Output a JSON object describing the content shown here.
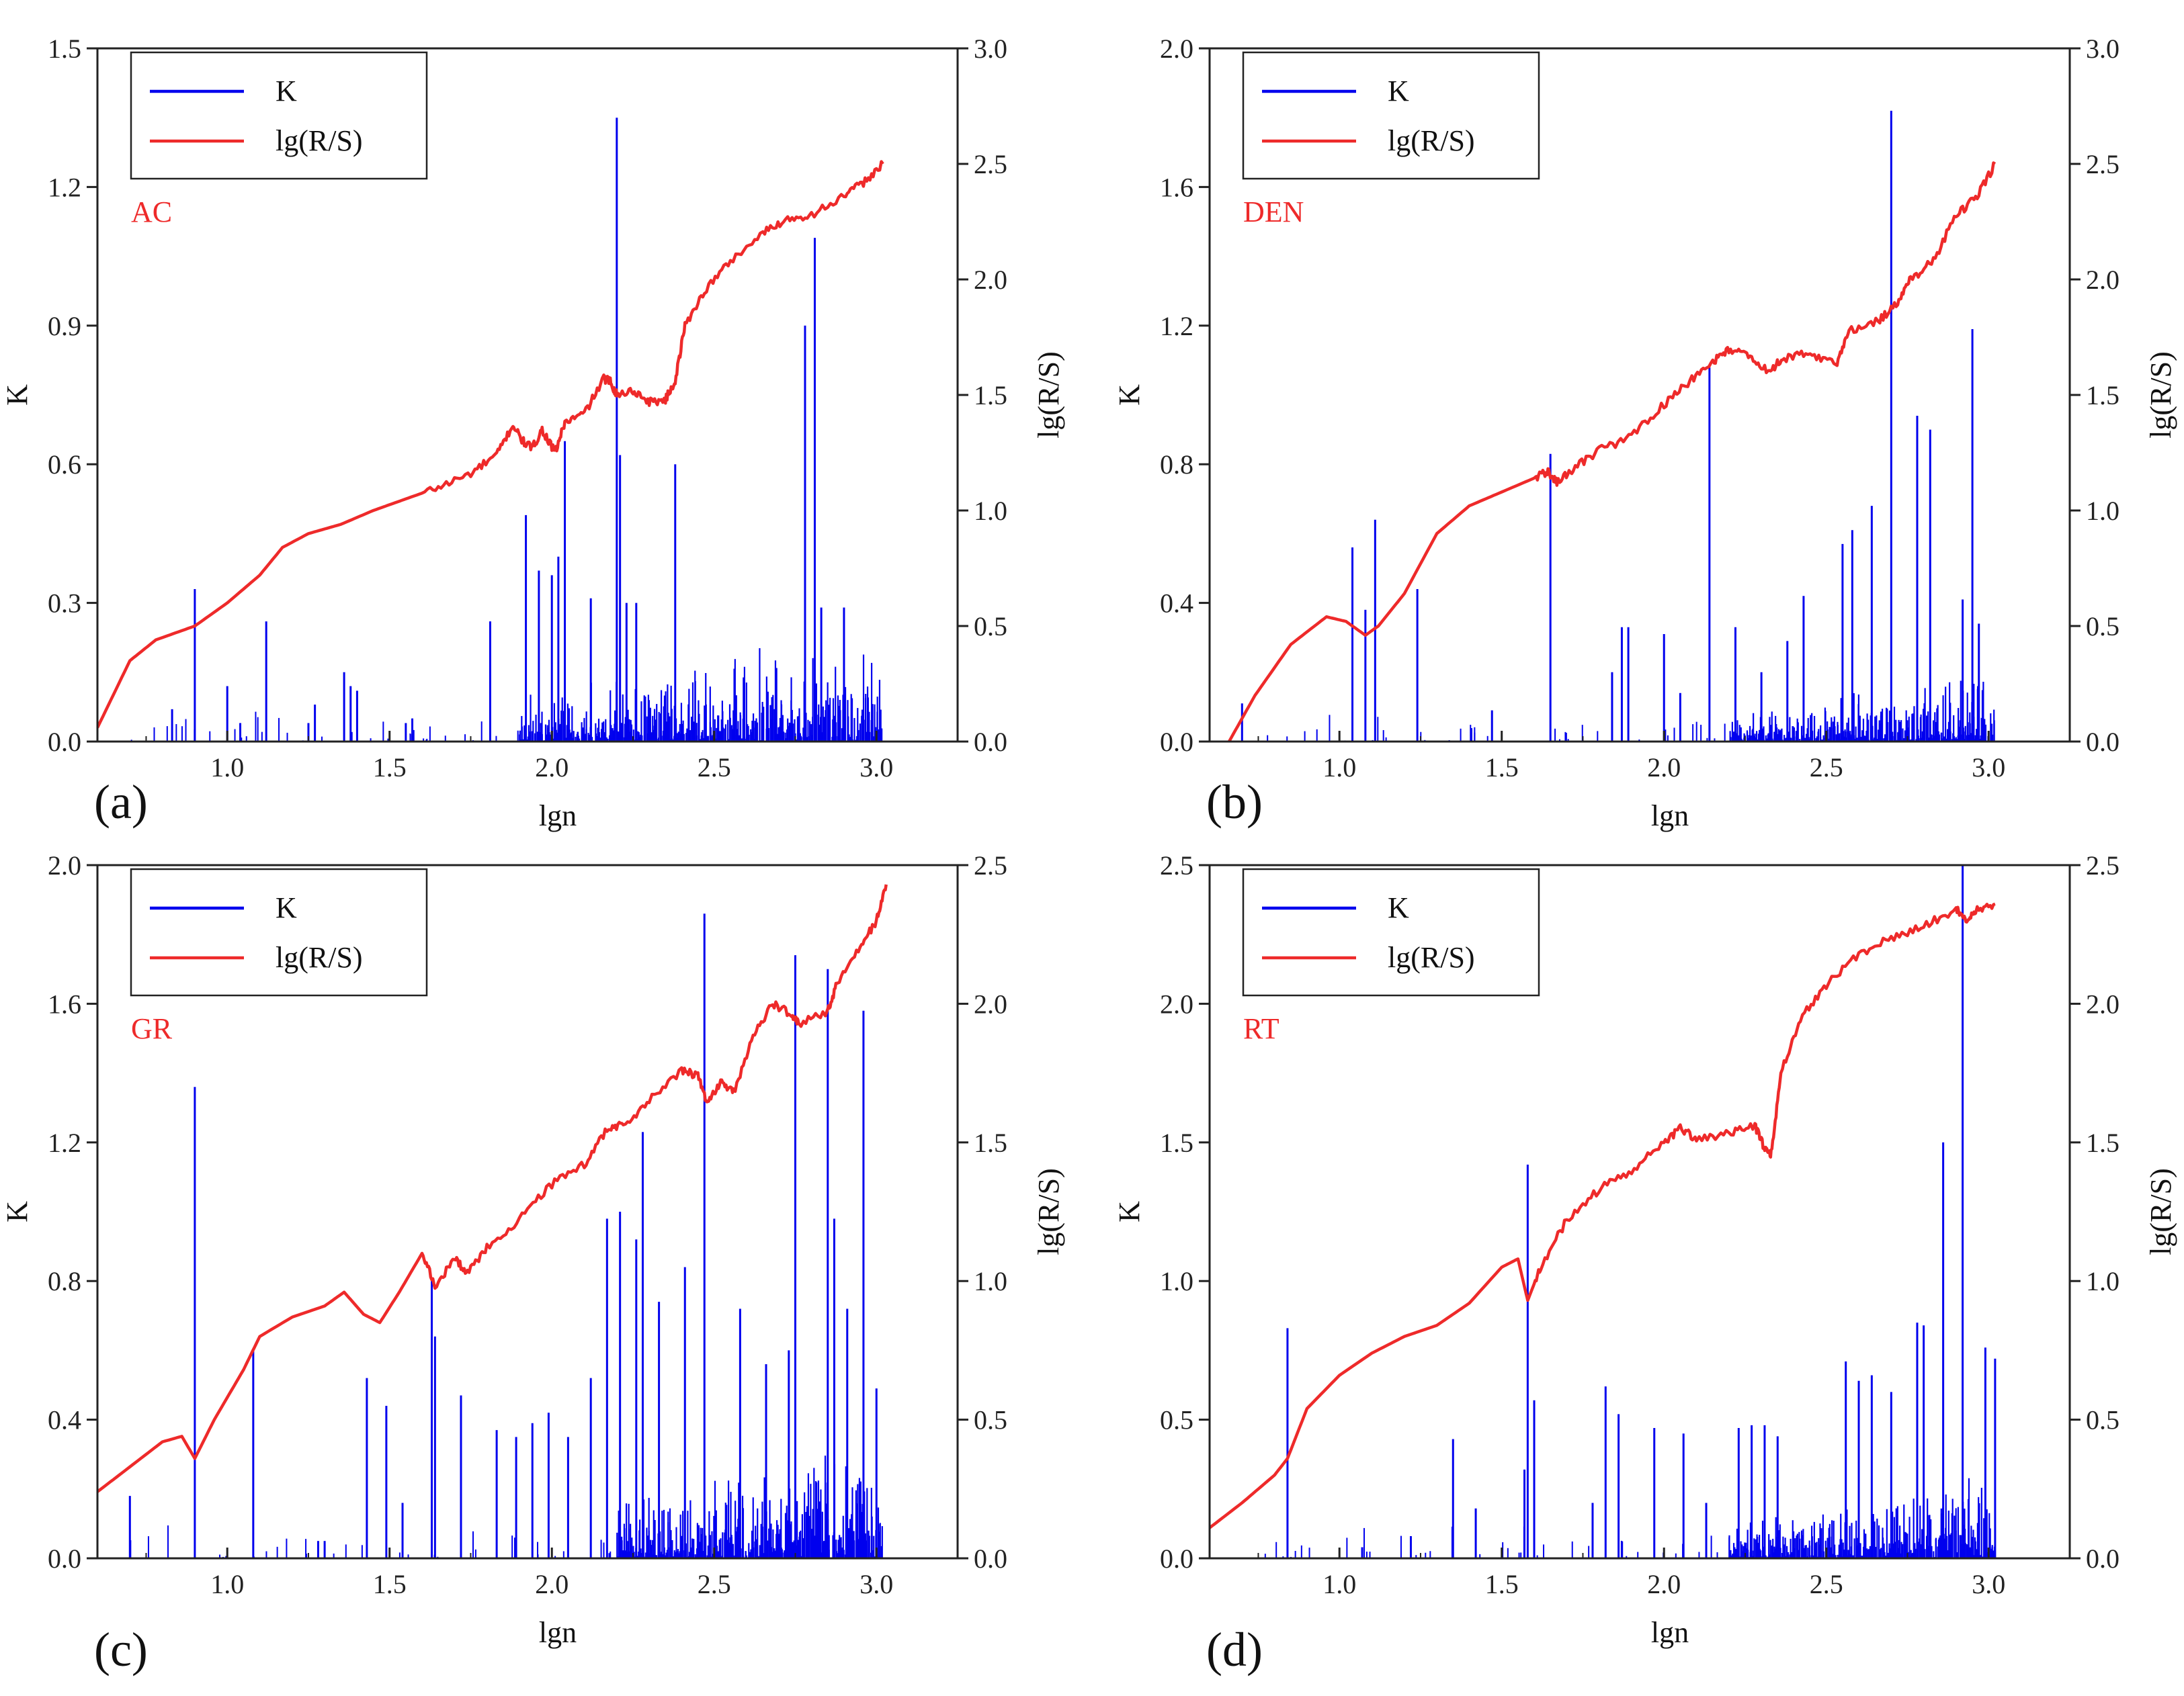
{
  "colors": {
    "k_series": "#0000ee",
    "rs_series": "#ee2a2a",
    "axis": "#222222"
  },
  "chart_data": [
    {
      "type": "bar+line",
      "panel_label": "(a)",
      "series_tag": "AC",
      "xlabel": "lgn",
      "ylabel_left": "K",
      "ylabel_right": "lg(R/S)",
      "xlim": [
        0.6,
        3.25
      ],
      "ylim_left": [
        0,
        1.5
      ],
      "ylim_right": [
        0,
        3.0
      ],
      "x_ticks": [
        "1.0",
        "1.5",
        "2.0",
        "2.5",
        "3.0"
      ],
      "y_ticks_left": [
        "0.0",
        "0.3",
        "0.6",
        "0.9",
        "1.2",
        "1.5"
      ],
      "y_ticks_right": [
        "0.0",
        "0.5",
        "1.0",
        "1.5",
        "2.0",
        "2.5",
        "3.0"
      ],
      "legend": [
        "K",
        "lg(R/S)"
      ],
      "k_peaks": [
        [
          0.83,
          0.07
        ],
        [
          0.9,
          0.33
        ],
        [
          1.0,
          0.12
        ],
        [
          1.04,
          0.04
        ],
        [
          1.12,
          0.26
        ],
        [
          1.25,
          0.04
        ],
        [
          1.27,
          0.08
        ],
        [
          1.36,
          0.15
        ],
        [
          1.38,
          0.12
        ],
        [
          1.4,
          0.11
        ],
        [
          1.55,
          0.04
        ],
        [
          1.57,
          0.05
        ],
        [
          1.81,
          0.26
        ],
        [
          1.92,
          0.49
        ],
        [
          1.96,
          0.37
        ],
        [
          2.0,
          0.36
        ],
        [
          2.02,
          0.4
        ],
        [
          2.04,
          0.65
        ],
        [
          2.12,
          0.31
        ],
        [
          2.2,
          1.35
        ],
        [
          2.21,
          0.62
        ],
        [
          2.23,
          0.3
        ],
        [
          2.26,
          0.3
        ],
        [
          2.38,
          0.6
        ],
        [
          2.78,
          0.9
        ],
        [
          2.81,
          1.09
        ],
        [
          2.83,
          0.29
        ],
        [
          2.9,
          0.29
        ]
      ],
      "k_noise": {
        "start": 1.9,
        "end": 3.02,
        "max": 0.22
      },
      "rs_line": [
        [
          0.6,
          0.06
        ],
        [
          0.7,
          0.35
        ],
        [
          0.78,
          0.44
        ],
        [
          0.9,
          0.5
        ],
        [
          1.0,
          0.6
        ],
        [
          1.1,
          0.72
        ],
        [
          1.17,
          0.84
        ],
        [
          1.25,
          0.9
        ],
        [
          1.35,
          0.94
        ],
        [
          1.45,
          1.0
        ],
        [
          1.55,
          1.05
        ],
        [
          1.65,
          1.1
        ],
        [
          1.75,
          1.16
        ],
        [
          1.83,
          1.24
        ],
        [
          1.88,
          1.37
        ],
        [
          1.91,
          1.3
        ],
        [
          1.94,
          1.27
        ],
        [
          1.97,
          1.35
        ],
        [
          2.01,
          1.25
        ],
        [
          2.04,
          1.38
        ],
        [
          2.1,
          1.42
        ],
        [
          2.16,
          1.57
        ],
        [
          2.18,
          1.56
        ],
        [
          2.2,
          1.5
        ],
        [
          2.25,
          1.52
        ],
        [
          2.3,
          1.47
        ],
        [
          2.35,
          1.48
        ],
        [
          2.38,
          1.56
        ],
        [
          2.41,
          1.8
        ],
        [
          2.47,
          1.95
        ],
        [
          2.55,
          2.08
        ],
        [
          2.65,
          2.2
        ],
        [
          2.72,
          2.26
        ],
        [
          2.8,
          2.28
        ],
        [
          2.9,
          2.36
        ],
        [
          2.96,
          2.42
        ],
        [
          3.02,
          2.5
        ]
      ]
    },
    {
      "type": "bar+line",
      "panel_label": "(b)",
      "series_tag": "DEN",
      "xlabel": "lgn",
      "ylabel_left": "K",
      "ylabel_right": "lg(R/S)",
      "xlim": [
        0.6,
        3.25
      ],
      "ylim_left": [
        0,
        2.0
      ],
      "ylim_right": [
        0,
        3.0
      ],
      "x_ticks": [
        "1.0",
        "1.5",
        "2.0",
        "2.5",
        "3.0"
      ],
      "y_ticks_left": [
        "0.0",
        "0.4",
        "0.8",
        "1.2",
        "1.6",
        "2.0"
      ],
      "y_ticks_right": [
        "0.0",
        "0.5",
        "1.0",
        "1.5",
        "2.0",
        "2.5",
        "3.0"
      ],
      "legend": [
        "K",
        "lg(R/S)"
      ],
      "k_peaks": [
        [
          0.7,
          0.11
        ],
        [
          1.04,
          0.56
        ],
        [
          1.08,
          0.38
        ],
        [
          1.11,
          0.64
        ],
        [
          1.24,
          0.44
        ],
        [
          1.47,
          0.09
        ],
        [
          1.65,
          0.83
        ],
        [
          1.84,
          0.2
        ],
        [
          1.87,
          0.33
        ],
        [
          1.89,
          0.33
        ],
        [
          2.0,
          0.31
        ],
        [
          2.05,
          0.14
        ],
        [
          2.14,
          1.08
        ],
        [
          2.22,
          0.33
        ],
        [
          2.3,
          0.2
        ],
        [
          2.38,
          0.29
        ],
        [
          2.43,
          0.42
        ],
        [
          2.55,
          0.57
        ],
        [
          2.58,
          0.61
        ],
        [
          2.64,
          0.68
        ],
        [
          2.7,
          1.82
        ],
        [
          2.78,
          0.94
        ],
        [
          2.82,
          0.9
        ],
        [
          2.92,
          0.41
        ],
        [
          2.95,
          1.19
        ],
        [
          2.97,
          0.34
        ]
      ],
      "k_noise": {
        "start": 2.2,
        "end": 3.02,
        "max": 0.18
      },
      "rs_line": [
        [
          0.66,
          0.0
        ],
        [
          0.74,
          0.2
        ],
        [
          0.85,
          0.42
        ],
        [
          0.96,
          0.54
        ],
        [
          1.02,
          0.52
        ],
        [
          1.08,
          0.46
        ],
        [
          1.12,
          0.5
        ],
        [
          1.2,
          0.64
        ],
        [
          1.3,
          0.9
        ],
        [
          1.4,
          1.02
        ],
        [
          1.5,
          1.08
        ],
        [
          1.6,
          1.14
        ],
        [
          1.64,
          1.17
        ],
        [
          1.67,
          1.12
        ],
        [
          1.72,
          1.18
        ],
        [
          1.8,
          1.26
        ],
        [
          1.9,
          1.32
        ],
        [
          2.0,
          1.46
        ],
        [
          2.08,
          1.56
        ],
        [
          2.15,
          1.64
        ],
        [
          2.2,
          1.7
        ],
        [
          2.26,
          1.67
        ],
        [
          2.32,
          1.6
        ],
        [
          2.37,
          1.66
        ],
        [
          2.45,
          1.68
        ],
        [
          2.53,
          1.63
        ],
        [
          2.57,
          1.78
        ],
        [
          2.66,
          1.82
        ],
        [
          2.72,
          1.9
        ],
        [
          2.76,
          2.0
        ],
        [
          2.83,
          2.08
        ],
        [
          2.9,
          2.28
        ],
        [
          2.96,
          2.35
        ],
        [
          3.02,
          2.5
        ]
      ]
    },
    {
      "type": "bar+line",
      "panel_label": "(c)",
      "series_tag": "GR",
      "xlabel": "lgn",
      "ylabel_left": "K",
      "ylabel_right": "lg(R/S)",
      "xlim": [
        0.6,
        3.25
      ],
      "ylim_left": [
        0,
        2.0
      ],
      "ylim_right": [
        0,
        2.5
      ],
      "x_ticks": [
        "1.0",
        "1.5",
        "2.0",
        "2.5",
        "3.0"
      ],
      "y_ticks_left": [
        "0.0",
        "0.4",
        "0.8",
        "1.2",
        "1.6",
        "2.0"
      ],
      "y_ticks_right": [
        "0.0",
        "0.5",
        "1.0",
        "1.5",
        "2.0",
        "2.5"
      ],
      "legend": [
        "K",
        "lg(R/S)"
      ],
      "k_peaks": [
        [
          0.7,
          0.18
        ],
        [
          0.9,
          1.36
        ],
        [
          1.08,
          0.6
        ],
        [
          1.28,
          0.05
        ],
        [
          1.3,
          0.05
        ],
        [
          1.43,
          0.52
        ],
        [
          1.49,
          0.44
        ],
        [
          1.54,
          0.16
        ],
        [
          1.63,
          0.8
        ],
        [
          1.64,
          0.64
        ],
        [
          1.72,
          0.47
        ],
        [
          1.83,
          0.37
        ],
        [
          1.89,
          0.35
        ],
        [
          1.94,
          0.39
        ],
        [
          1.99,
          0.42
        ],
        [
          2.05,
          0.35
        ],
        [
          2.12,
          0.52
        ],
        [
          2.17,
          0.98
        ],
        [
          2.21,
          1.0
        ],
        [
          2.26,
          0.92
        ],
        [
          2.28,
          1.23
        ],
        [
          2.33,
          0.74
        ],
        [
          2.41,
          0.84
        ],
        [
          2.47,
          1.86
        ],
        [
          2.58,
          0.72
        ],
        [
          2.66,
          0.56
        ],
        [
          2.73,
          0.6
        ],
        [
          2.75,
          1.74
        ],
        [
          2.85,
          1.7
        ],
        [
          2.87,
          0.98
        ],
        [
          2.91,
          0.72
        ],
        [
          2.96,
          1.58
        ],
        [
          3.0,
          0.49
        ]
      ],
      "k_noise": {
        "start": 2.2,
        "end": 3.02,
        "max": 0.35
      },
      "rs_line": [
        [
          0.6,
          0.24
        ],
        [
          0.7,
          0.33
        ],
        [
          0.8,
          0.42
        ],
        [
          0.86,
          0.44
        ],
        [
          0.9,
          0.36
        ],
        [
          0.96,
          0.5
        ],
        [
          1.05,
          0.68
        ],
        [
          1.1,
          0.8
        ],
        [
          1.2,
          0.87
        ],
        [
          1.3,
          0.91
        ],
        [
          1.36,
          0.96
        ],
        [
          1.42,
          0.88
        ],
        [
          1.47,
          0.85
        ],
        [
          1.53,
          0.96
        ],
        [
          1.6,
          1.1
        ],
        [
          1.64,
          0.98
        ],
        [
          1.7,
          1.08
        ],
        [
          1.74,
          1.03
        ],
        [
          1.8,
          1.12
        ],
        [
          1.9,
          1.22
        ],
        [
          2.0,
          1.35
        ],
        [
          2.1,
          1.42
        ],
        [
          2.17,
          1.55
        ],
        [
          2.22,
          1.56
        ],
        [
          2.3,
          1.65
        ],
        [
          2.4,
          1.76
        ],
        [
          2.45,
          1.74
        ],
        [
          2.48,
          1.64
        ],
        [
          2.52,
          1.72
        ],
        [
          2.56,
          1.68
        ],
        [
          2.62,
          1.88
        ],
        [
          2.68,
          2.0
        ],
        [
          2.74,
          1.96
        ],
        [
          2.76,
          1.93
        ],
        [
          2.85,
          1.97
        ],
        [
          2.88,
          2.08
        ],
        [
          2.95,
          2.2
        ],
        [
          3.0,
          2.3
        ],
        [
          3.03,
          2.43
        ]
      ]
    },
    {
      "type": "bar+line",
      "panel_label": "(d)",
      "series_tag": "RT",
      "xlabel": "lgn",
      "ylabel_left": "K",
      "ylabel_right": "lg(R/S)",
      "xlim": [
        0.6,
        3.25
      ],
      "ylim_left": [
        0,
        2.5
      ],
      "ylim_right": [
        0,
        2.5
      ],
      "x_ticks": [
        "1.0",
        "1.5",
        "2.0",
        "2.5",
        "3.0"
      ],
      "y_ticks_left": [
        "0.0",
        "0.5",
        "1.0",
        "1.5",
        "2.0",
        "2.5"
      ],
      "y_ticks_right": [
        "0.0",
        "0.5",
        "1.0",
        "1.5",
        "2.0",
        "2.5"
      ],
      "legend": [
        "K",
        "lg(R/S)"
      ],
      "k_peaks": [
        [
          0.84,
          0.83
        ],
        [
          1.07,
          0.04
        ],
        [
          1.22,
          0.08
        ],
        [
          1.35,
          0.43
        ],
        [
          1.42,
          0.18
        ],
        [
          1.57,
          0.32
        ],
        [
          1.58,
          1.42
        ],
        [
          1.6,
          0.57
        ],
        [
          1.78,
          0.2
        ],
        [
          1.82,
          0.62
        ],
        [
          1.86,
          0.52
        ],
        [
          1.97,
          0.47
        ],
        [
          2.06,
          0.45
        ],
        [
          2.13,
          0.2
        ],
        [
          2.23,
          0.47
        ],
        [
          2.27,
          0.48
        ],
        [
          2.31,
          0.48
        ],
        [
          2.35,
          0.44
        ],
        [
          2.56,
          0.71
        ],
        [
          2.6,
          0.64
        ],
        [
          2.64,
          0.66
        ],
        [
          2.7,
          0.6
        ],
        [
          2.78,
          0.85
        ],
        [
          2.8,
          0.84
        ],
        [
          2.86,
          1.5
        ],
        [
          2.92,
          2.5
        ],
        [
          2.99,
          0.76
        ],
        [
          3.02,
          0.72
        ]
      ],
      "k_noise": {
        "start": 2.2,
        "end": 3.02,
        "max": 0.28
      },
      "rs_line": [
        [
          0.6,
          0.11
        ],
        [
          0.7,
          0.2
        ],
        [
          0.8,
          0.3
        ],
        [
          0.84,
          0.36
        ],
        [
          0.9,
          0.54
        ],
        [
          1.0,
          0.66
        ],
        [
          1.1,
          0.74
        ],
        [
          1.2,
          0.8
        ],
        [
          1.3,
          0.84
        ],
        [
          1.4,
          0.92
        ],
        [
          1.5,
          1.05
        ],
        [
          1.55,
          1.08
        ],
        [
          1.58,
          0.93
        ],
        [
          1.62,
          1.05
        ],
        [
          1.7,
          1.22
        ],
        [
          1.8,
          1.33
        ],
        [
          1.9,
          1.4
        ],
        [
          2.0,
          1.5
        ],
        [
          2.05,
          1.55
        ],
        [
          2.1,
          1.51
        ],
        [
          2.2,
          1.53
        ],
        [
          2.28,
          1.56
        ],
        [
          2.31,
          1.48
        ],
        [
          2.33,
          1.46
        ],
        [
          2.36,
          1.75
        ],
        [
          2.42,
          1.95
        ],
        [
          2.5,
          2.07
        ],
        [
          2.6,
          2.18
        ],
        [
          2.7,
          2.24
        ],
        [
          2.8,
          2.28
        ],
        [
          2.9,
          2.34
        ],
        [
          2.93,
          2.3
        ],
        [
          2.96,
          2.34
        ],
        [
          3.02,
          2.36
        ]
      ]
    }
  ]
}
